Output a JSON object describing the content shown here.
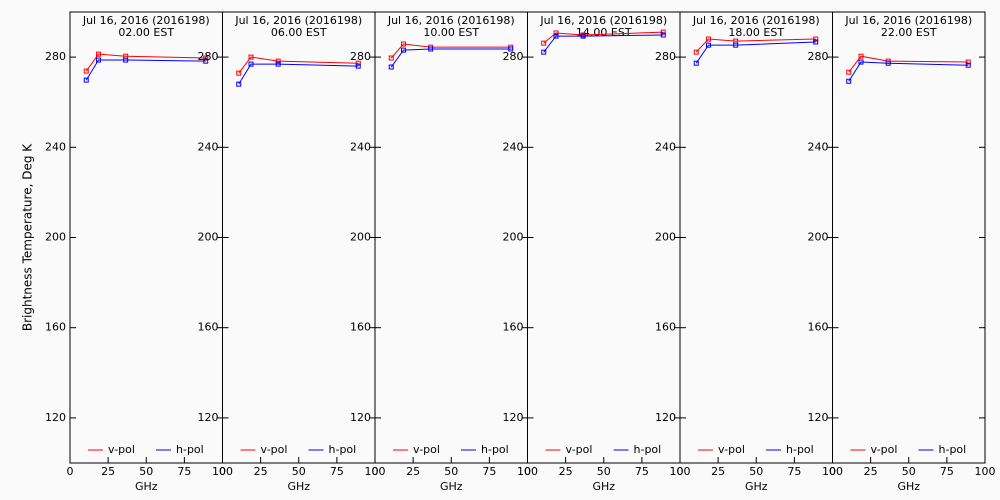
{
  "chart_data": [
    {
      "type": "line",
      "title": "Jul 16, 2016 (2016198)",
      "subtitle": "02.00 EST",
      "ylabel": "Brightness Temperature, Deg K",
      "xlabel": "GHz",
      "x": [
        10.65,
        18.7,
        36.5,
        89.0
      ],
      "series": [
        {
          "name": "v-pol",
          "color": "#ff0000",
          "values": [
            273.8,
            281.3,
            280.4,
            279.6
          ]
        },
        {
          "name": "h-pol",
          "color": "#0000ff",
          "values": [
            269.8,
            278.7,
            278.7,
            278.2
          ]
        }
      ],
      "xlim": [
        0,
        100
      ],
      "xticks": [
        0,
        25,
        50,
        75,
        100
      ],
      "ylim": [
        100,
        300
      ],
      "yticks": [
        120,
        160,
        200,
        240,
        280
      ]
    },
    {
      "type": "line",
      "title": "Jul 16, 2016 (2016198)",
      "subtitle": "06.00 EST",
      "xlabel": "GHz",
      "x": [
        10.65,
        18.7,
        36.5,
        89.0
      ],
      "series": [
        {
          "name": "v-pol",
          "color": "#ff0000",
          "values": [
            272.9,
            280.0,
            278.2,
            277.3
          ]
        },
        {
          "name": "h-pol",
          "color": "#0000ff",
          "values": [
            268.0,
            276.9,
            276.9,
            276.0
          ]
        }
      ],
      "xlim": [
        0,
        100
      ],
      "xticks": [
        0,
        25,
        50,
        75,
        100
      ],
      "ylim": [
        100,
        300
      ],
      "yticks": [
        120,
        160,
        200,
        240,
        280
      ]
    },
    {
      "type": "line",
      "title": "Jul 16, 2016 (2016198)",
      "subtitle": "10.00 EST",
      "xlabel": "GHz",
      "x": [
        10.65,
        18.7,
        36.5,
        89.0
      ],
      "series": [
        {
          "name": "v-pol",
          "color": "#ff0000",
          "values": [
            279.6,
            285.8,
            284.4,
            284.4
          ]
        },
        {
          "name": "h-pol",
          "color": "#0000ff",
          "values": [
            275.6,
            283.1,
            283.6,
            283.6
          ]
        }
      ],
      "xlim": [
        0,
        100
      ],
      "xticks": [
        0,
        25,
        50,
        75,
        100
      ],
      "ylim": [
        100,
        300
      ],
      "yticks": [
        120,
        160,
        200,
        240,
        280
      ]
    },
    {
      "type": "line",
      "title": "Jul 16, 2016 (2016198)",
      "subtitle": "14.00 EST",
      "xlabel": "GHz",
      "x": [
        10.65,
        18.7,
        36.5,
        89.0
      ],
      "series": [
        {
          "name": "v-pol",
          "color": "#ff0000",
          "values": [
            286.2,
            290.7,
            289.8,
            291.1
          ]
        },
        {
          "name": "h-pol",
          "color": "#0000ff",
          "values": [
            282.2,
            289.3,
            289.3,
            289.8
          ]
        }
      ],
      "xlim": [
        0,
        100
      ],
      "xticks": [
        0,
        25,
        50,
        75,
        100
      ],
      "ylim": [
        100,
        300
      ],
      "yticks": [
        120,
        160,
        200,
        240,
        280
      ]
    },
    {
      "type": "line",
      "title": "Jul 16, 2016 (2016198)",
      "subtitle": "18.00 EST",
      "xlabel": "GHz",
      "x": [
        10.65,
        18.7,
        36.5,
        89.0
      ],
      "series": [
        {
          "name": "v-pol",
          "color": "#ff0000",
          "values": [
            282.2,
            288.0,
            287.1,
            288.0
          ]
        },
        {
          "name": "h-pol",
          "color": "#0000ff",
          "values": [
            277.3,
            285.3,
            285.3,
            286.7
          ]
        }
      ],
      "xlim": [
        0,
        100
      ],
      "xticks": [
        0,
        25,
        50,
        75,
        100
      ],
      "ylim": [
        100,
        300
      ],
      "yticks": [
        120,
        160,
        200,
        240,
        280
      ]
    },
    {
      "type": "line",
      "title": "Jul 16, 2016 (2016198)",
      "subtitle": "22.00 EST",
      "xlabel": "GHz",
      "x": [
        10.65,
        18.7,
        36.5,
        89.0
      ],
      "series": [
        {
          "name": "v-pol",
          "color": "#ff0000",
          "values": [
            273.3,
            280.4,
            278.2,
            277.8
          ]
        },
        {
          "name": "h-pol",
          "color": "#0000ff",
          "values": [
            269.3,
            277.8,
            277.3,
            276.4
          ]
        }
      ],
      "xlim": [
        0,
        100
      ],
      "xticks": [
        0,
        25,
        50,
        75,
        100
      ],
      "ylim": [
        100,
        300
      ],
      "yticks": [
        120,
        160,
        200,
        240,
        280
      ]
    }
  ]
}
